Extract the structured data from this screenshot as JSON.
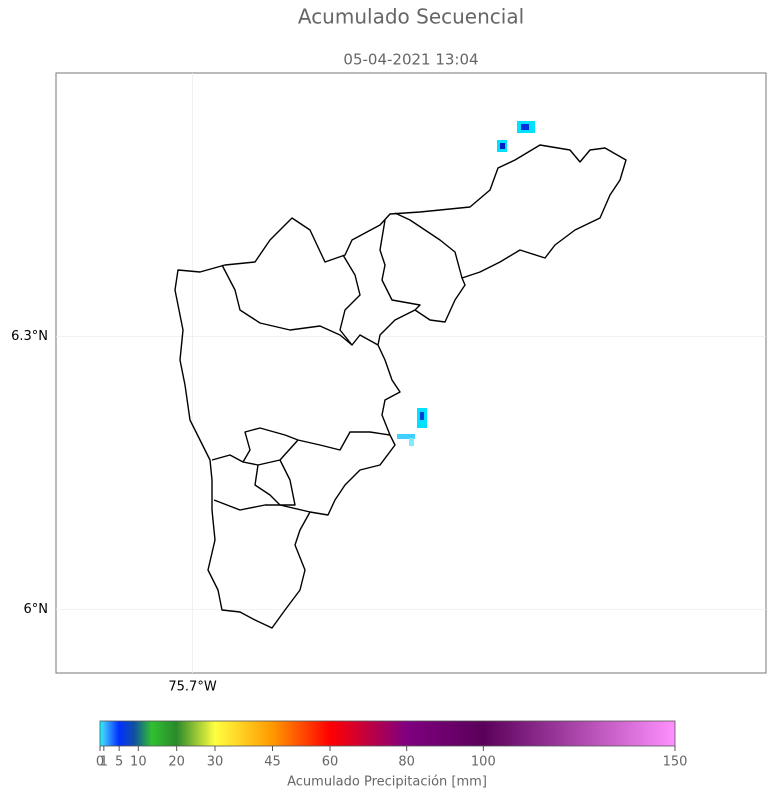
{
  "header": {
    "title": "Acumulado Secuencial",
    "subtitle": "05-04-2021 13:04"
  },
  "map": {
    "xlim": [
      -75.85,
      -75.07
    ],
    "ylim": [
      5.93,
      6.59
    ],
    "xticks": [
      {
        "value": -75.7,
        "label": "75.7°W"
      }
    ],
    "yticks": [
      {
        "value": 6.0,
        "label": "6°N"
      },
      {
        "value": 6.3,
        "label": "6.3°N"
      }
    ],
    "grid": true
  },
  "colorbar": {
    "lim": [
      0,
      150
    ],
    "ticks": [
      0,
      1,
      5,
      10,
      20,
      30,
      45,
      60,
      80,
      100,
      150
    ],
    "label": "Acumulado Precipitación [mm]"
  }
}
